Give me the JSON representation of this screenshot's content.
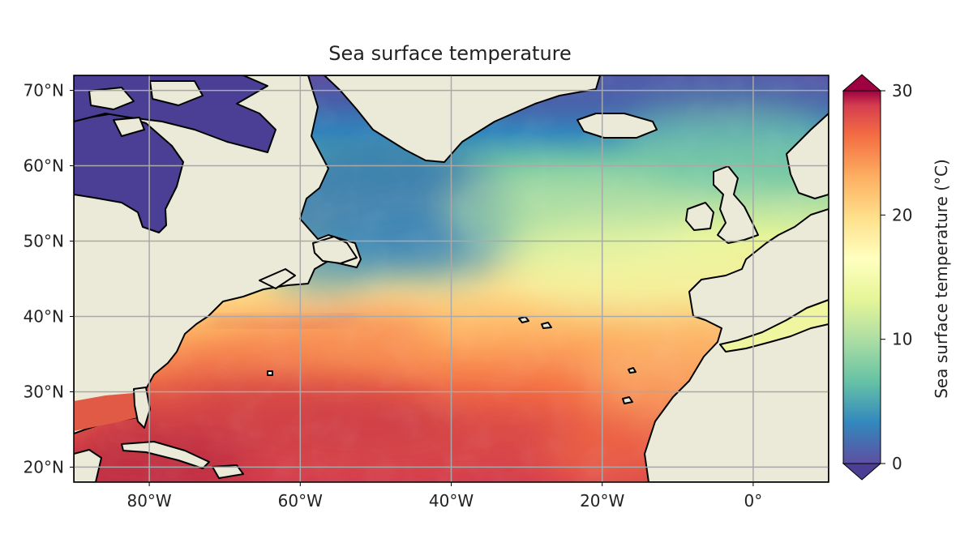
{
  "title": "Sea surface temperature",
  "map": {
    "projection": "PlateCarree",
    "lon_range": [
      -90,
      10
    ],
    "lat_range": [
      18,
      72
    ],
    "grid": true,
    "x_ticks": [
      {
        "lon": -80,
        "label": "80°W"
      },
      {
        "lon": -60,
        "label": "60°W"
      },
      {
        "lon": -40,
        "label": "40°W"
      },
      {
        "lon": -20,
        "label": "20°W"
      },
      {
        "lon": 0,
        "label": "0°"
      }
    ],
    "y_ticks": [
      {
        "lat": 70,
        "label": "70°N"
      },
      {
        "lat": 60,
        "label": "60°N"
      },
      {
        "lat": 50,
        "label": "50°N"
      },
      {
        "lat": 40,
        "label": "40°N"
      },
      {
        "lat": 30,
        "label": "30°N"
      },
      {
        "lat": 20,
        "label": "20°N"
      }
    ]
  },
  "colorbar": {
    "label": "Sea surface temperature (°C)",
    "range": [
      0,
      30
    ],
    "extend": "both",
    "colormap": "Spectral_r",
    "ticks": [
      {
        "value": 0,
        "label": "0"
      },
      {
        "value": 10,
        "label": "10"
      },
      {
        "value": 20,
        "label": "20"
      },
      {
        "value": 30,
        "label": "30"
      }
    ]
  },
  "colors": {
    "land": "#ebe9d7",
    "coastline": "#000000",
    "grid": "#a9a9a9"
  }
}
